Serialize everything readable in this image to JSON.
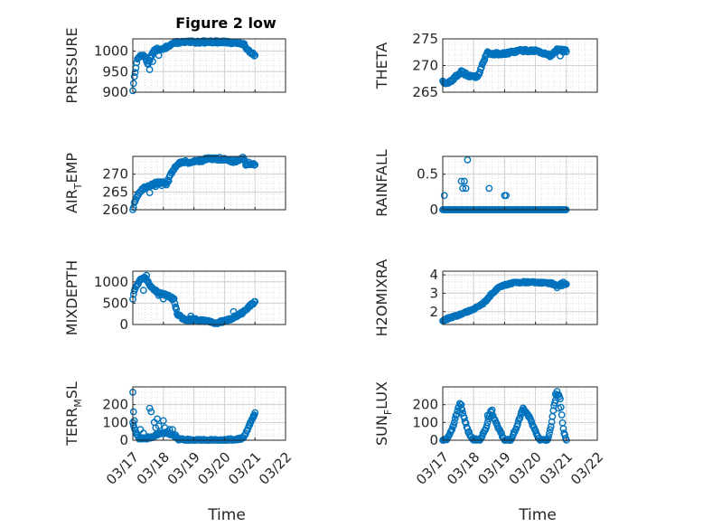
{
  "figure": {
    "title": "Figure 2 low",
    "x_axis_label": "Time",
    "x_tick_labels": [
      "03/17",
      "03/18",
      "03/19",
      "03/20",
      "03/21",
      "03/22"
    ],
    "marker": "open-circle",
    "marker_color": "#0072BD",
    "grid": "major and minor dotted"
  },
  "chart_data": [
    {
      "type": "scatter",
      "ylabel": "PRESSURE",
      "xlim": [
        0,
        5
      ],
      "ylim": [
        900,
        1030
      ],
      "yticks": [
        900,
        950,
        1000
      ],
      "anchors": [
        [
          0,
          905
        ],
        [
          0.03,
          925
        ],
        [
          0.07,
          948
        ],
        [
          0.13,
          975
        ],
        [
          0.2,
          987
        ],
        [
          0.3,
          990
        ],
        [
          0.4,
          985
        ],
        [
          0.5,
          968
        ],
        [
          0.6,
          990
        ],
        [
          0.7,
          1000
        ],
        [
          0.8,
          1005
        ],
        [
          0.9,
          1003
        ],
        [
          1.0,
          1005
        ],
        [
          1.1,
          1010
        ],
        [
          1.2,
          1015
        ],
        [
          1.35,
          1020
        ],
        [
          1.5,
          1022
        ],
        [
          2.0,
          1022
        ],
        [
          2.5,
          1023
        ],
        [
          3.0,
          1022
        ],
        [
          3.5,
          1020
        ],
        [
          3.65,
          1015
        ],
        [
          3.75,
          1005
        ],
        [
          3.9,
          995
        ],
        [
          4.0,
          990
        ]
      ],
      "scatter": [
        [
          0.55,
          955
        ],
        [
          0.65,
          975
        ],
        [
          0.85,
          990
        ]
      ],
      "sample_step": 0.025,
      "jitter": 3
    },
    {
      "type": "scatter",
      "ylabel": "THETA",
      "xlim": [
        0,
        5
      ],
      "ylim": [
        265,
        275
      ],
      "yticks": [
        265,
        270,
        275
      ],
      "anchors": [
        [
          0,
          267.2
        ],
        [
          0.1,
          266.5
        ],
        [
          0.2,
          266.8
        ],
        [
          0.3,
          267.3
        ],
        [
          0.5,
          268.3
        ],
        [
          0.6,
          268.8
        ],
        [
          0.7,
          268.5
        ],
        [
          0.8,
          268.2
        ],
        [
          1.0,
          267.8
        ],
        [
          1.15,
          268.2
        ],
        [
          1.3,
          270.5
        ],
        [
          1.45,
          272.5
        ],
        [
          1.6,
          272.2
        ],
        [
          2.0,
          272.2
        ],
        [
          2.5,
          272.8
        ],
        [
          3.0,
          272.8
        ],
        [
          3.4,
          272.0
        ],
        [
          3.5,
          271.8
        ],
        [
          3.7,
          273.0
        ],
        [
          4.0,
          272.8
        ]
      ],
      "scatter": [
        [
          3.8,
          271.8
        ],
        [
          3.9,
          272.5
        ]
      ],
      "sample_step": 0.025,
      "jitter": 0.25
    },
    {
      "type": "scatter",
      "ylabel": "AIR",
      "ylabel_sub": "T",
      "ylabel_suffix": "EMP",
      "xlim": [
        0,
        5
      ],
      "ylim": [
        260,
        275
      ],
      "yticks": [
        260,
        265,
        270
      ],
      "anchors": [
        [
          0,
          260
        ],
        [
          0.05,
          262
        ],
        [
          0.15,
          264
        ],
        [
          0.3,
          265.5
        ],
        [
          0.45,
          266.5
        ],
        [
          0.6,
          267
        ],
        [
          0.8,
          267.5
        ],
        [
          1.0,
          267.5
        ],
        [
          1.15,
          268
        ],
        [
          1.3,
          271
        ],
        [
          1.5,
          273.3
        ],
        [
          2.0,
          273.5
        ],
        [
          2.5,
          274.3
        ],
        [
          3.0,
          274.3
        ],
        [
          3.3,
          273.5
        ],
        [
          3.5,
          274.0
        ],
        [
          3.6,
          274.5
        ],
        [
          3.7,
          273.0
        ],
        [
          3.8,
          273.0
        ],
        [
          4.0,
          272.5
        ]
      ],
      "scatter": [
        [
          0.55,
          264.8
        ],
        [
          0.75,
          266.5
        ],
        [
          0.95,
          266.8
        ],
        [
          1.1,
          267.0
        ],
        [
          3.7,
          272.5
        ]
      ],
      "sample_step": 0.025,
      "jitter": 0.4
    },
    {
      "type": "scatter",
      "ylabel": "RAINFALL",
      "xlim": [
        0,
        5
      ],
      "ylim": [
        0,
        0.75
      ],
      "yticks": [
        0,
        0.5
      ],
      "anchors": [
        [
          0,
          0
        ],
        [
          4.0,
          0
        ]
      ],
      "scatter": [
        [
          0.05,
          0.2
        ],
        [
          0.6,
          0.4
        ],
        [
          0.65,
          0.3
        ],
        [
          0.7,
          0.4
        ],
        [
          0.75,
          0.3
        ],
        [
          0.8,
          0.7
        ],
        [
          1.5,
          0.3
        ],
        [
          2.0,
          0.2
        ],
        [
          2.05,
          0.2
        ]
      ],
      "sample_step": 0.03,
      "jitter": 0
    },
    {
      "type": "scatter",
      "ylabel": "MIXDEPTH",
      "xlim": [
        0,
        5
      ],
      "ylim": [
        0,
        1250
      ],
      "yticks": [
        0,
        500,
        1000
      ],
      "anchors": [
        [
          0,
          600
        ],
        [
          0.05,
          800
        ],
        [
          0.15,
          950
        ],
        [
          0.25,
          1050
        ],
        [
          0.4,
          1120
        ],
        [
          0.5,
          1000
        ],
        [
          0.6,
          900
        ],
        [
          0.75,
          780
        ],
        [
          1.0,
          700
        ],
        [
          1.2,
          650
        ],
        [
          1.35,
          580
        ],
        [
          1.45,
          250
        ],
        [
          1.6,
          150
        ],
        [
          1.8,
          100
        ],
        [
          2.0,
          120
        ],
        [
          2.3,
          100
        ],
        [
          2.5,
          80
        ],
        [
          2.7,
          30
        ],
        [
          3.0,
          80
        ],
        [
          3.2,
          130
        ],
        [
          3.4,
          200
        ],
        [
          3.6,
          280
        ],
        [
          3.8,
          420
        ],
        [
          4.0,
          520
        ]
      ],
      "scatter": [
        [
          0.35,
          800
        ],
        [
          0.45,
          1150
        ],
        [
          0.85,
          680
        ],
        [
          1.0,
          600
        ],
        [
          1.25,
          620
        ],
        [
          1.4,
          400
        ],
        [
          1.9,
          200
        ],
        [
          3.3,
          300
        ]
      ],
      "sample_step": 0.025,
      "jitter": 30
    },
    {
      "type": "scatter",
      "ylabel": "H2OMIXRA",
      "xlim": [
        0,
        5
      ],
      "ylim": [
        1.3,
        4.2
      ],
      "yticks": [
        2,
        3,
        4
      ],
      "anchors": [
        [
          0,
          1.5
        ],
        [
          0.2,
          1.65
        ],
        [
          0.5,
          1.8
        ],
        [
          0.8,
          2.0
        ],
        [
          1.2,
          2.3
        ],
        [
          1.4,
          2.6
        ],
        [
          1.6,
          3.0
        ],
        [
          1.8,
          3.3
        ],
        [
          2.0,
          3.45
        ],
        [
          2.4,
          3.6
        ],
        [
          3.0,
          3.6
        ],
        [
          3.5,
          3.55
        ],
        [
          3.7,
          3.4
        ],
        [
          3.8,
          3.5
        ],
        [
          4.0,
          3.5
        ]
      ],
      "scatter": [
        [
          3.7,
          3.3
        ],
        [
          3.85,
          3.4
        ],
        [
          3.9,
          3.6
        ]
      ],
      "sample_step": 0.025,
      "jitter": 0.04
    },
    {
      "type": "scatter",
      "ylabel": "TERR",
      "ylabel_sub": "M",
      "ylabel_suffix": "SL",
      "xlim": [
        0,
        5
      ],
      "ylim": [
        0,
        300
      ],
      "yticks": [
        0,
        100,
        200
      ],
      "anchors": [
        [
          0,
          100
        ],
        [
          0.1,
          40
        ],
        [
          0.2,
          10
        ],
        [
          0.4,
          10
        ],
        [
          0.6,
          15
        ],
        [
          0.9,
          40
        ],
        [
          1.1,
          40
        ],
        [
          1.3,
          30
        ],
        [
          1.5,
          5
        ],
        [
          2.0,
          0
        ],
        [
          2.5,
          0
        ],
        [
          3.0,
          0
        ],
        [
          3.3,
          5
        ],
        [
          3.6,
          10
        ],
        [
          3.7,
          40
        ],
        [
          3.8,
          80
        ],
        [
          3.9,
          120
        ],
        [
          4.0,
          150
        ]
      ],
      "scatter": [
        [
          0.0,
          270
        ],
        [
          0.02,
          160
        ],
        [
          0.05,
          110
        ],
        [
          0.25,
          60
        ],
        [
          0.35,
          40
        ],
        [
          0.5,
          20
        ],
        [
          0.55,
          180
        ],
        [
          0.6,
          160
        ],
        [
          0.7,
          100
        ],
        [
          0.75,
          70
        ],
        [
          0.8,
          120
        ],
        [
          0.85,
          80
        ],
        [
          1.0,
          110
        ],
        [
          1.05,
          70
        ],
        [
          1.15,
          50
        ],
        [
          1.2,
          60
        ],
        [
          1.3,
          60
        ],
        [
          1.4,
          30
        ],
        [
          3.85,
          100
        ],
        [
          3.95,
          130
        ]
      ],
      "sample_step": 0.025,
      "jitter": 5
    },
    {
      "type": "scatter",
      "ylabel": "SUN",
      "ylabel_sub": "F",
      "ylabel_suffix": "LUX",
      "xlim": [
        0,
        5
      ],
      "ylim": [
        0,
        300
      ],
      "yticks": [
        0,
        100,
        200
      ],
      "anchors": [
        [
          0,
          0
        ],
        [
          0.15,
          10
        ],
        [
          0.3,
          60
        ],
        [
          0.45,
          150
        ],
        [
          0.55,
          210
        ],
        [
          0.65,
          150
        ],
        [
          0.8,
          60
        ],
        [
          0.95,
          5
        ],
        [
          1.2,
          0
        ],
        [
          1.4,
          70
        ],
        [
          1.55,
          160
        ],
        [
          1.7,
          110
        ],
        [
          1.85,
          50
        ],
        [
          2.0,
          0
        ],
        [
          2.2,
          0
        ],
        [
          2.4,
          80
        ],
        [
          2.6,
          180
        ],
        [
          2.8,
          130
        ],
        [
          3.0,
          50
        ],
        [
          3.15,
          0
        ],
        [
          3.4,
          0
        ],
        [
          3.5,
          80
        ],
        [
          3.6,
          190
        ],
        [
          3.7,
          270
        ],
        [
          3.8,
          230
        ],
        [
          3.9,
          60
        ],
        [
          4.0,
          0
        ]
      ],
      "scatter": [
        [
          0.6,
          200
        ],
        [
          1.45,
          140
        ],
        [
          1.6,
          170
        ],
        [
          2.55,
          160
        ],
        [
          3.65,
          260
        ],
        [
          3.75,
          180
        ]
      ],
      "sample_step": 0.025,
      "jitter": 6
    }
  ]
}
